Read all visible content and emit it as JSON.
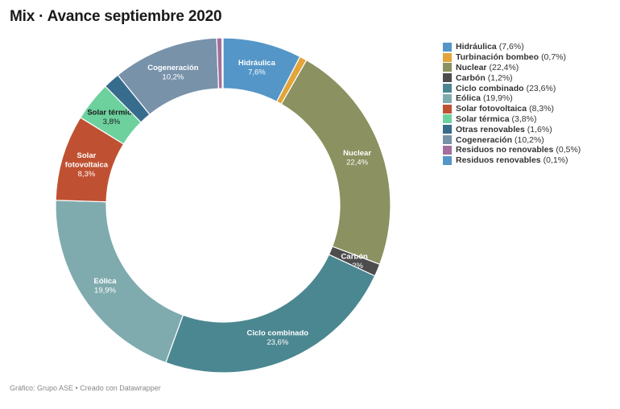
{
  "title": "Mix · Avance septiembre 2020",
  "footer": "Gráfico: Grupo ASE • Creado con Datawrapper",
  "chart_data": {
    "type": "pie",
    "variant": "donut",
    "unit": "%",
    "slices": [
      {
        "name": "Hidráulica",
        "value": 7.6,
        "display": "7,6%",
        "color": "#5496c7",
        "label_color": "#ffffff",
        "slice_label": [
          "Hidráulica"
        ]
      },
      {
        "name": "Turbinación bombeo",
        "value": 0.7,
        "display": "0,7%",
        "color": "#e2a53a",
        "label_color": "#ffffff",
        "slice_label": []
      },
      {
        "name": "Nuclear",
        "value": 22.4,
        "display": "22,4%",
        "color": "#8b9160",
        "label_color": "#ffffff",
        "slice_label": [
          "Nuclear"
        ]
      },
      {
        "name": "Carbón",
        "value": 1.2,
        "display": "1,2%",
        "color": "#4d4d4d",
        "label_color": "#ffffff",
        "slice_label": [
          "Carbón"
        ]
      },
      {
        "name": "Ciclo combinado",
        "value": 23.6,
        "display": "23,6%",
        "color": "#4b8791",
        "label_color": "#ffffff",
        "slice_label": [
          "Ciclo combinado"
        ]
      },
      {
        "name": "Eólica",
        "value": 19.9,
        "display": "19,9%",
        "color": "#80abae",
        "label_color": "#ffffff",
        "slice_label": [
          "Eólica"
        ]
      },
      {
        "name": "Solar fotovoltaica",
        "value": 8.3,
        "display": "8,3%",
        "color": "#bf5132",
        "label_color": "#ffffff",
        "slice_label": [
          "Solar",
          "fotovoltaica"
        ]
      },
      {
        "name": "Solar térmica",
        "value": 3.8,
        "display": "3,8%",
        "color": "#6dd19e",
        "label_color": "#1a1a1a",
        "slice_label": [
          "Solar térmica"
        ]
      },
      {
        "name": "Otras renovables",
        "value": 1.6,
        "display": "1,6%",
        "color": "#386c8c",
        "label_color": "#ffffff",
        "slice_label": []
      },
      {
        "name": "Cogeneración",
        "value": 10.2,
        "display": "10,2%",
        "color": "#7892aa",
        "label_color": "#ffffff",
        "slice_label": [
          "Cogeneración"
        ]
      },
      {
        "name": "Residuos no renovables",
        "value": 0.5,
        "display": "0,5%",
        "color": "#a46f9c",
        "label_color": "#ffffff",
        "slice_label": []
      },
      {
        "name": "Residuos renovables",
        "value": 0.1,
        "display": "0,1%",
        "color": "#5496c7",
        "label_color": "#ffffff",
        "slice_label": []
      }
    ],
    "legend_position": "right"
  }
}
